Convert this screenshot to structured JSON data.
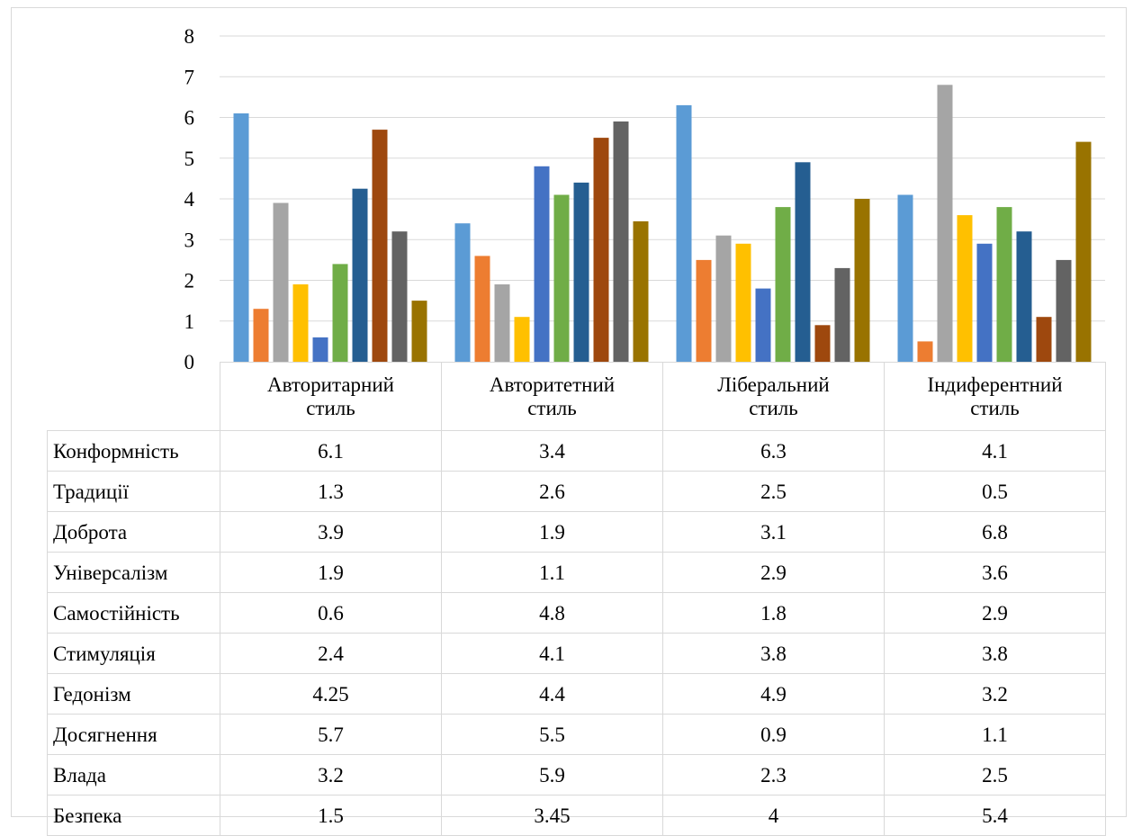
{
  "chart_data": {
    "type": "bar",
    "categories": [
      "Авторитарний стиль",
      "Авторитетний стиль",
      "Ліберальний стиль",
      "Індиферентний стиль"
    ],
    "category_lines": [
      [
        "Авторитарний",
        "стиль"
      ],
      [
        "Авторитетний",
        "стиль"
      ],
      [
        "Ліберальний",
        "стиль"
      ],
      [
        "Індиферентний",
        "стиль"
      ]
    ],
    "ylim": [
      0,
      8
    ],
    "yticks": [
      "0",
      "1",
      "2",
      "3",
      "4",
      "5",
      "6",
      "7",
      "8"
    ],
    "grid": true,
    "legend": "data-table-below",
    "series": [
      {
        "name": "Конформність",
        "color": "#5b9bd5",
        "values": [
          6.1,
          3.4,
          6.3,
          4.1
        ],
        "labels": [
          "6.1",
          "3.4",
          "6.3",
          "4.1"
        ]
      },
      {
        "name": "Традиції",
        "color": "#ed7d31",
        "values": [
          1.3,
          2.6,
          2.5,
          0.5
        ],
        "labels": [
          "1.3",
          "2.6",
          "2.5",
          "0.5"
        ]
      },
      {
        "name": "Доброта",
        "color": "#a5a5a5",
        "values": [
          3.9,
          1.9,
          3.1,
          6.8
        ],
        "labels": [
          "3.9",
          "1.9",
          "3.1",
          "6.8"
        ]
      },
      {
        "name": "Універсалізм",
        "color": "#ffc000",
        "values": [
          1.9,
          1.1,
          2.9,
          3.6
        ],
        "labels": [
          "1.9",
          "1.1",
          "2.9",
          "3.6"
        ]
      },
      {
        "name": "Самостійність",
        "color": "#4472c4",
        "values": [
          0.6,
          4.8,
          1.8,
          2.9
        ],
        "labels": [
          "0.6",
          "4.8",
          "1.8",
          "2.9"
        ]
      },
      {
        "name": "Стимуляція",
        "color": "#70ad47",
        "values": [
          2.4,
          4.1,
          3.8,
          3.8
        ],
        "labels": [
          "2.4",
          "4.1",
          "3.8",
          "3.8"
        ]
      },
      {
        "name": "Гедонізм",
        "color": "#255e91",
        "values": [
          4.25,
          4.4,
          4.9,
          3.2
        ],
        "labels": [
          "4.25",
          "4.4",
          "4.9",
          "3.2"
        ]
      },
      {
        "name": "Досягнення",
        "color": "#9e480e",
        "values": [
          5.7,
          5.5,
          0.9,
          1.1
        ],
        "labels": [
          "5.7",
          "5.5",
          "0.9",
          "1.1"
        ]
      },
      {
        "name": "Влада",
        "color": "#636363",
        "values": [
          3.2,
          5.9,
          2.3,
          2.5
        ],
        "labels": [
          "3.2",
          "5.9",
          "2.3",
          "2.5"
        ]
      },
      {
        "name": "Безпека",
        "color": "#997300",
        "values": [
          1.5,
          3.45,
          4,
          5.4
        ],
        "labels": [
          "1.5",
          "3.45",
          "4",
          "5.4"
        ]
      }
    ]
  },
  "colors": {
    "gridline": "#d9d9d9",
    "border": "#d9d9d9"
  }
}
